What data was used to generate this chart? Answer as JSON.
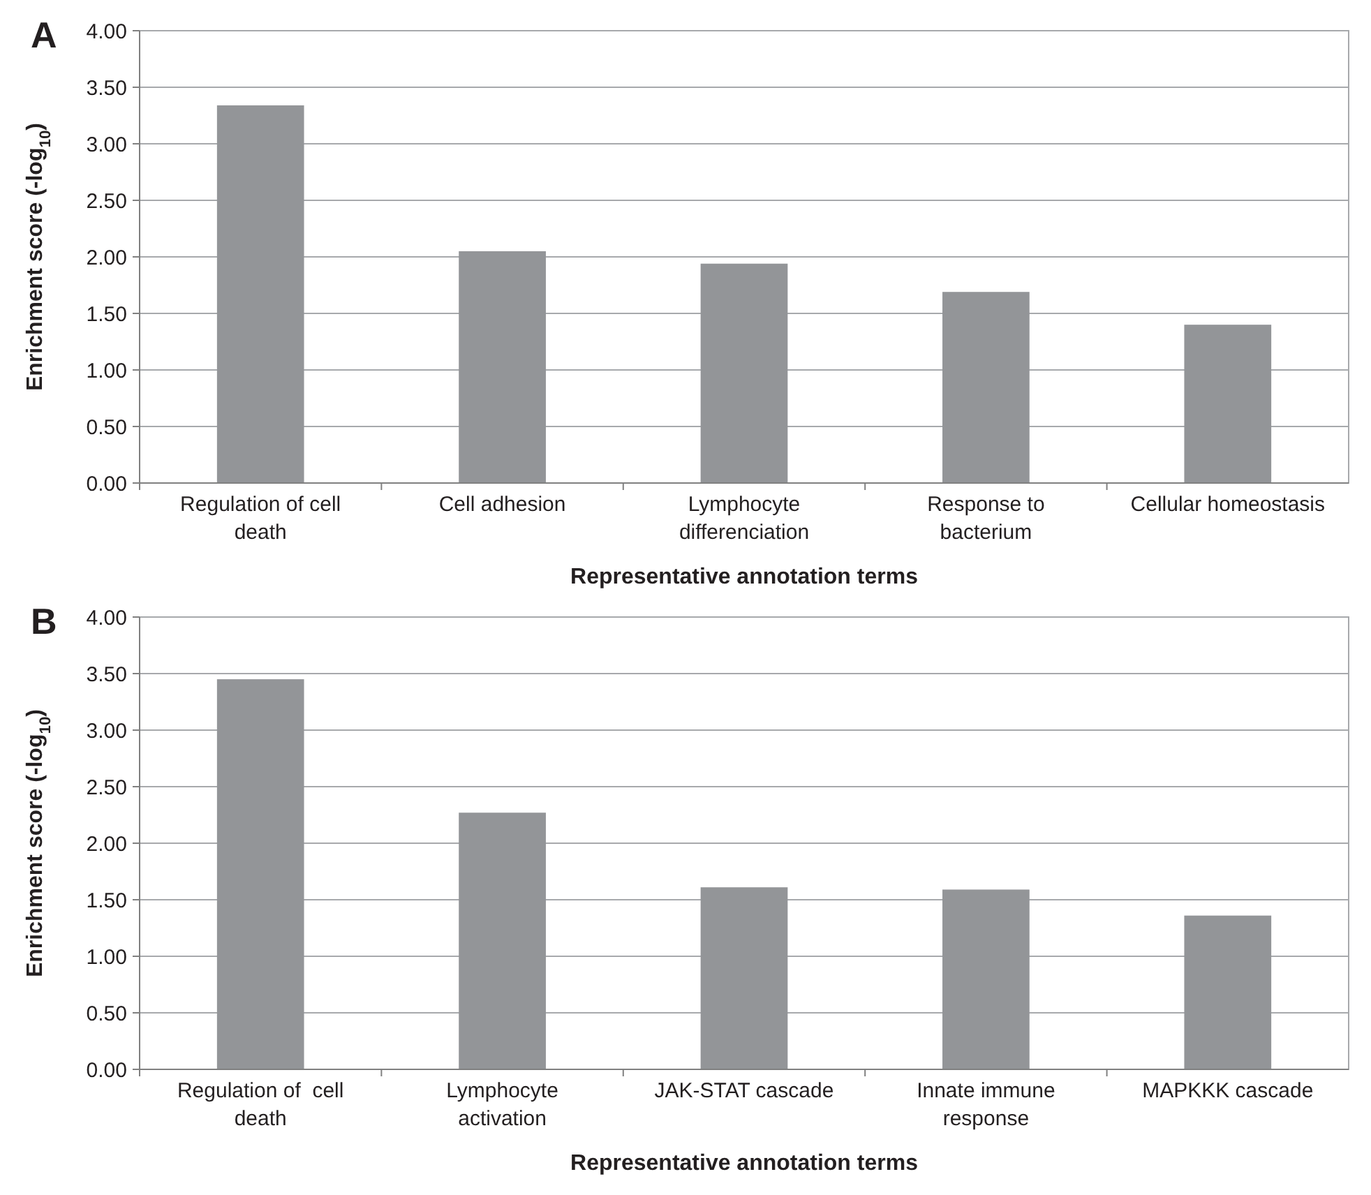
{
  "chart_data": [
    {
      "type": "bar",
      "title": "A",
      "categories": [
        "Regulation of cell death",
        "Cell adhesion",
        "Lymphocyte differenciation",
        "Response to bacterium",
        "Cellular homeostasis"
      ],
      "values": [
        3.34,
        2.05,
        1.94,
        1.69,
        1.4
      ],
      "color": "#939598",
      "ylim": [
        0,
        4
      ],
      "yticks": [
        {
          "value": 0,
          "label": "0.00"
        },
        {
          "value": 0.5,
          "label": "0.50"
        },
        {
          "value": 1,
          "label": "1.00"
        },
        {
          "value": 1.5,
          "label": "1.50"
        },
        {
          "value": 2,
          "label": "2.00"
        },
        {
          "value": 2.5,
          "label": "2.50"
        },
        {
          "value": 3,
          "label": "3.00"
        },
        {
          "value": 3.5,
          "label": "3.50"
        },
        {
          "value": 4,
          "label": "4.00"
        }
      ],
      "grid": "y",
      "xlabel": "Representative annotation terms",
      "ylabel": "Enrichment score (-log$_{10}$)"
    },
    {
      "type": "bar",
      "title": "B",
      "categories": [
        "Regulation of  cell death",
        "Lymphocyte activation",
        "JAK-STAT cascade",
        "Innate immune response",
        "MAPKKK cascade"
      ],
      "values": [
        3.45,
        2.27,
        1.61,
        1.59,
        1.36
      ],
      "color": "#939598",
      "ylim": [
        0,
        4
      ],
      "yticks": [
        {
          "value": 0,
          "label": "0.00"
        },
        {
          "value": 0.5,
          "label": "0.50"
        },
        {
          "value": 1,
          "label": "1.00"
        },
        {
          "value": 1.5,
          "label": "1.50"
        },
        {
          "value": 2,
          "label": "2.00"
        },
        {
          "value": 2.5,
          "label": "2.50"
        },
        {
          "value": 3,
          "label": "3.00"
        },
        {
          "value": 3.5,
          "label": "3.50"
        },
        {
          "value": 4,
          "label": "4.00"
        }
      ],
      "grid": "y",
      "xlabel": "Representative annotation terms",
      "ylabel": "Enrichment score (-log$_{10}$)"
    }
  ]
}
